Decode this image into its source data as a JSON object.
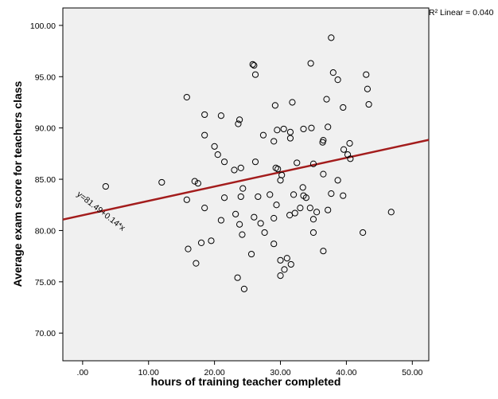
{
  "chart_data": {
    "type": "scatter",
    "xlabel": "hours of training teacher completed",
    "ylabel": "Average exam score for teachers class",
    "xlim": [
      -3,
      52.5
    ],
    "ylim": [
      67.3,
      101.7
    ],
    "x_ticks": [
      0,
      10,
      20,
      30,
      40,
      50
    ],
    "x_tick_labels": [
      ".00",
      "10.00",
      "20.00",
      "30.00",
      "40.00",
      "50.00"
    ],
    "y_ticks": [
      70,
      75,
      80,
      85,
      90,
      95,
      100
    ],
    "y_tick_labels": [
      "70.00",
      "75.00",
      "80.00",
      "85.00",
      "90.00",
      "95.00",
      "100.00"
    ],
    "grid": false,
    "fit_line": {
      "intercept": 81.49,
      "slope": 0.14,
      "color": "#a31c1c",
      "equation_label": "y=81.49+0.14*x",
      "r2_label": "R² Linear = 0.040"
    },
    "colors": {
      "plot_bg": "#f0f0f0",
      "marker_stroke": "#000000"
    },
    "points": [
      [
        3.5,
        84.3
      ],
      [
        12.0,
        84.7
      ],
      [
        15.8,
        93.0
      ],
      [
        15.8,
        83.0
      ],
      [
        16.0,
        78.2
      ],
      [
        17.0,
        84.8
      ],
      [
        17.2,
        76.8
      ],
      [
        17.5,
        84.6
      ],
      [
        18.0,
        78.8
      ],
      [
        18.5,
        91.3
      ],
      [
        18.5,
        89.3
      ],
      [
        18.5,
        82.2
      ],
      [
        19.5,
        79.0
      ],
      [
        20.0,
        88.2
      ],
      [
        20.5,
        87.4
      ],
      [
        21.0,
        91.2
      ],
      [
        21.0,
        81.0
      ],
      [
        21.5,
        86.7
      ],
      [
        21.5,
        83.2
      ],
      [
        23.0,
        85.9
      ],
      [
        23.2,
        81.6
      ],
      [
        23.5,
        75.4
      ],
      [
        23.6,
        90.4
      ],
      [
        23.8,
        90.8
      ],
      [
        23.8,
        80.6
      ],
      [
        24.0,
        86.1
      ],
      [
        24.0,
        83.3
      ],
      [
        24.2,
        79.6
      ],
      [
        24.5,
        74.3
      ],
      [
        24.3,
        84.1
      ],
      [
        25.6,
        77.7
      ],
      [
        25.8,
        96.2
      ],
      [
        26.0,
        96.1
      ],
      [
        26.0,
        81.3
      ],
      [
        26.2,
        95.2
      ],
      [
        26.2,
        86.7
      ],
      [
        26.6,
        83.3
      ],
      [
        27.0,
        80.7
      ],
      [
        27.4,
        89.3
      ],
      [
        27.6,
        79.8
      ],
      [
        28.4,
        83.5
      ],
      [
        29.0,
        78.7
      ],
      [
        29.0,
        81.2
      ],
      [
        29.0,
        88.7
      ],
      [
        29.2,
        92.2
      ],
      [
        29.3,
        86.1
      ],
      [
        29.4,
        82.5
      ],
      [
        29.5,
        89.8
      ],
      [
        29.6,
        86.0
      ],
      [
        30.0,
        84.9
      ],
      [
        30.0,
        77.1
      ],
      [
        30.0,
        75.6
      ],
      [
        30.2,
        85.4
      ],
      [
        30.5,
        89.9
      ],
      [
        30.6,
        76.2
      ],
      [
        31.0,
        77.3
      ],
      [
        31.4,
        81.5
      ],
      [
        31.5,
        89.6
      ],
      [
        31.5,
        89.0
      ],
      [
        31.6,
        76.7
      ],
      [
        31.8,
        92.5
      ],
      [
        32.0,
        83.5
      ],
      [
        32.2,
        81.7
      ],
      [
        32.5,
        86.6
      ],
      [
        33.0,
        82.2
      ],
      [
        33.4,
        84.2
      ],
      [
        33.5,
        83.4
      ],
      [
        33.5,
        89.9
      ],
      [
        33.9,
        83.2
      ],
      [
        34.5,
        82.2
      ],
      [
        34.6,
        96.3
      ],
      [
        34.7,
        90.0
      ],
      [
        35.0,
        79.8
      ],
      [
        35.0,
        86.5
      ],
      [
        35.0,
        81.1
      ],
      [
        35.5,
        81.8
      ],
      [
        36.4,
        88.6
      ],
      [
        36.5,
        88.8
      ],
      [
        36.5,
        85.5
      ],
      [
        36.5,
        78.0
      ],
      [
        37.0,
        92.8
      ],
      [
        37.2,
        90.1
      ],
      [
        37.2,
        82.0
      ],
      [
        37.7,
        98.8
      ],
      [
        37.7,
        83.6
      ],
      [
        38.0,
        95.4
      ],
      [
        38.7,
        94.7
      ],
      [
        38.7,
        84.9
      ],
      [
        39.5,
        92.0
      ],
      [
        39.6,
        87.9
      ],
      [
        39.5,
        83.4
      ],
      [
        40.2,
        87.4
      ],
      [
        40.5,
        88.5
      ],
      [
        40.6,
        87.0
      ],
      [
        42.5,
        79.8
      ],
      [
        43.0,
        95.2
      ],
      [
        43.2,
        93.8
      ],
      [
        43.4,
        92.3
      ],
      [
        46.8,
        81.8
      ]
    ]
  }
}
